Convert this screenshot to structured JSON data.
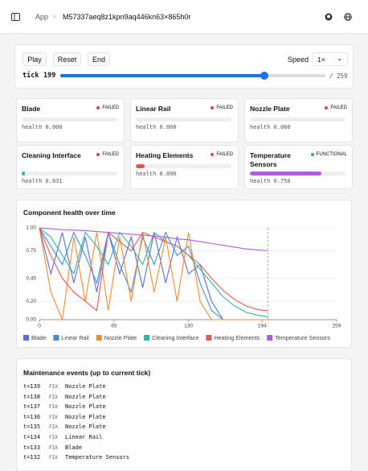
{
  "header": {
    "crumb": "App",
    "id": "M57337aeq8z1kpn9aq446kn63×865h0r"
  },
  "controls": {
    "play": "Play",
    "reset": "Reset",
    "end": "End",
    "speed_label": "Speed",
    "speed": "1×",
    "tick_label": "tick",
    "tick": 199,
    "max": {
      "value": 259,
      "label": "/ 259"
    }
  },
  "components": [
    {
      "name": "Blade",
      "status": "FAILED",
      "status_color": "#e0453a",
      "health_label": "health",
      "health": {
        "value": 0,
        "label": "0.000"
      },
      "color": "#5b6bd6"
    },
    {
      "name": "Linear Rail",
      "status": "FAILED",
      "status_color": "#e0453a",
      "health_label": "health",
      "health": {
        "value": 0,
        "label": "0.000"
      },
      "color": "#3b8fd9"
    },
    {
      "name": "Nozzle Plate",
      "status": "FAILED",
      "status_color": "#e0453a",
      "health_label": "health",
      "health": {
        "value": 0,
        "label": "0.000"
      },
      "color": "#f08a30"
    },
    {
      "name": "Cleaning Interface",
      "status": "FAILED",
      "status_color": "#e0453a",
      "health_label": "health",
      "health": {
        "value": 0.031,
        "label": "0.031"
      },
      "color": "#2fb5a8"
    },
    {
      "name": "Heating Elements",
      "status": "FAILED",
      "status_color": "#e0453a",
      "health_label": "health",
      "health": {
        "value": 0.096,
        "label": "0.096"
      },
      "color": "#e0584c"
    },
    {
      "name": "Temperature Sensors",
      "status": "FUNCTIONAL",
      "status_color": "#2fb36a",
      "health_label": "health",
      "health": {
        "value": 0.75,
        "label": "0.750"
      },
      "color": "#b05ce0"
    }
  ],
  "chart_data": {
    "type": "line",
    "title": "Component health over time",
    "x": [
      0,
      10,
      20,
      30,
      40,
      50,
      60,
      70,
      80,
      90,
      100,
      110,
      120,
      130,
      140,
      150,
      160,
      170,
      180,
      190,
      199
    ],
    "xlim": [
      0,
      259
    ],
    "xticks": [
      0,
      65,
      130,
      194,
      259
    ],
    "ylim": [
      0,
      1
    ],
    "yticks": [
      {
        "value": 0,
        "label": "0.00"
      },
      {
        "value": 0.2,
        "label": "0.20"
      },
      {
        "value": 0.45,
        "label": "0.45"
      },
      {
        "value": 0.75,
        "label": "0.75"
      },
      {
        "value": 1,
        "label": "1.00"
      }
    ],
    "series": [
      {
        "name": "Blade",
        "color": "#5b6bd6",
        "values": [
          1,
          0.5,
          0.95,
          0.4,
          0.9,
          0.3,
          0.95,
          0.5,
          0.9,
          0.35,
          0.95,
          0.4,
          0.9,
          0.5,
          0.6,
          0.2,
          0,
          0,
          0,
          0,
          0
        ]
      },
      {
        "name": "Linear Rail",
        "color": "#3b8fd9",
        "values": [
          1,
          0.8,
          0.6,
          0.95,
          0.7,
          0.4,
          0.95,
          0.6,
          0.3,
          0.9,
          0.6,
          0.95,
          0.7,
          0.8,
          0.4,
          0.1,
          0,
          0,
          0,
          0,
          0
        ]
      },
      {
        "name": "Nozzle Plate",
        "color": "#f08a30",
        "values": [
          1,
          0.3,
          0,
          0.9,
          0.2,
          0.95,
          0.1,
          0.9,
          0.2,
          0.95,
          0.3,
          0.9,
          0.2,
          0.95,
          0.2,
          0,
          0,
          0,
          0,
          0,
          0
        ]
      },
      {
        "name": "Cleaning Interface",
        "color": "#2fb5a8",
        "values": [
          1,
          0.9,
          0.7,
          0.5,
          0.95,
          0.8,
          0.6,
          0.95,
          0.8,
          0.6,
          0.95,
          0.85,
          0.8,
          0.7,
          0.55,
          0.4,
          0.25,
          0.15,
          0.08,
          0.05,
          0.031
        ]
      },
      {
        "name": "Heating Elements",
        "color": "#e0584c",
        "values": [
          1,
          0.7,
          0.45,
          0.3,
          0.2,
          0.1,
          0.95,
          0.85,
          0.75,
          0.95,
          0.9,
          0.85,
          0.8,
          0.7,
          0.6,
          0.45,
          0.32,
          0.22,
          0.15,
          0.11,
          0.096
        ]
      },
      {
        "name": "Temperature Sensors",
        "color": "#b05ce0",
        "values": [
          1,
          0.99,
          0.98,
          0.975,
          0.97,
          0.96,
          0.95,
          0.94,
          0.93,
          0.92,
          0.91,
          0.9,
          0.88,
          0.87,
          0.85,
          0.83,
          0.81,
          0.79,
          0.77,
          0.76,
          0.75
        ]
      }
    ]
  },
  "events": {
    "title": "Maintenance events (up to current tick)",
    "rows": [
      {
        "time": "t=139",
        "action": "FIX",
        "component": "Nozzle Plate"
      },
      {
        "time": "t=138",
        "action": "FIX",
        "component": "Nozzle Plate"
      },
      {
        "time": "t=137",
        "action": "FIX",
        "component": "Nozzle Plate"
      },
      {
        "time": "t=136",
        "action": "FIX",
        "component": "Nozzle Plate"
      },
      {
        "time": "t=135",
        "action": "FIX",
        "component": "Nozzle Plate"
      },
      {
        "time": "t=134",
        "action": "FIX",
        "component": "Linear Rail"
      },
      {
        "time": "t=133",
        "action": "FIX",
        "component": "Blade"
      },
      {
        "time": "t=132",
        "action": "FIX",
        "component": "Temperature Sensors"
      }
    ]
  }
}
